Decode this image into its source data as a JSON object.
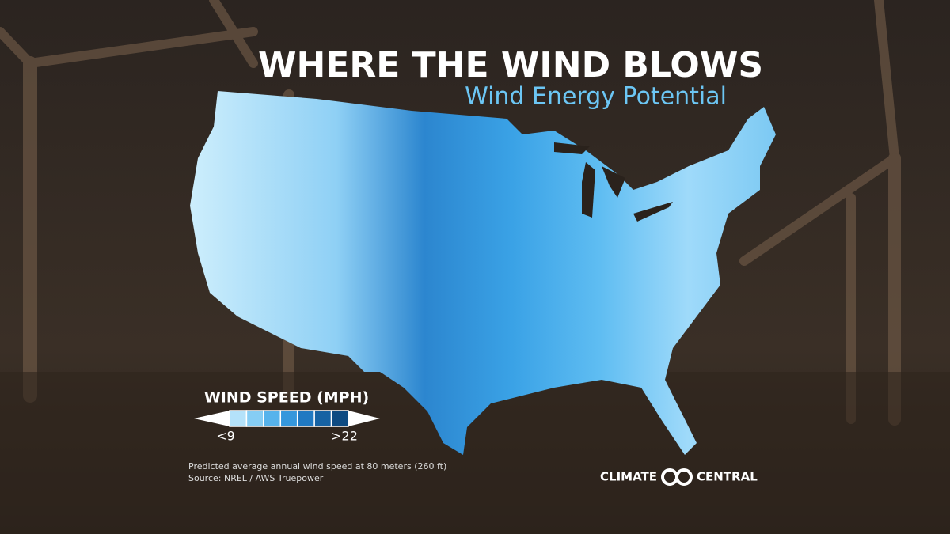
{
  "header": {
    "title": "WHERE THE WIND BLOWS",
    "subtitle": "Wind Energy Potential"
  },
  "legend": {
    "title": "WIND SPEED (MPH)",
    "min_label": "<9",
    "max_label": ">22",
    "colors": [
      "#b4e2fa",
      "#86cdf4",
      "#56b3ec",
      "#3597dc",
      "#2079c2",
      "#1662a3",
      "#0e4b82"
    ]
  },
  "footnote": {
    "description": "Predicted average annual wind speed at 80 meters (260 ft)",
    "source": "Source: NREL / AWS Truepower"
  },
  "logo": {
    "left": "CLIMATE",
    "right": "CENTRAL"
  }
}
